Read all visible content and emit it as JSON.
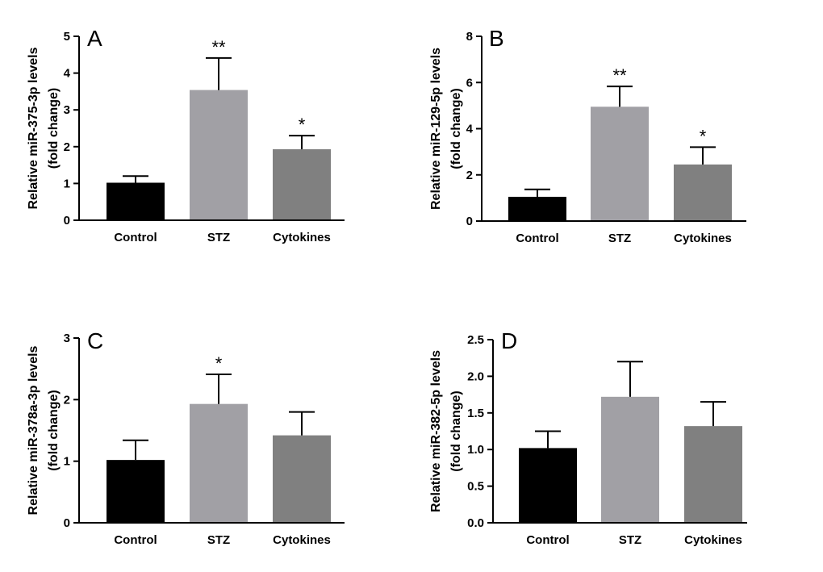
{
  "chart_data": [
    {
      "type": "bar",
      "panel": "A",
      "categories": [
        "Control",
        "STZ",
        "Cytokines"
      ],
      "values": [
        1.02,
        3.54,
        1.93
      ],
      "errors": [
        0.18,
        0.87,
        0.37
      ],
      "significance": [
        "",
        "**",
        "*"
      ],
      "colors": [
        "#000000",
        "#a1a0a5",
        "#808080"
      ],
      "ylabel_line1": "Relative miR-375-3p levels",
      "ylabel_line2": "(fold change)",
      "ylim": [
        0,
        5
      ],
      "yticks": [
        "0",
        "1",
        "2",
        "3",
        "4",
        "5"
      ],
      "ytick_values": [
        0,
        1,
        2,
        3,
        4,
        5
      ]
    },
    {
      "type": "bar",
      "panel": "B",
      "categories": [
        "Control",
        "STZ",
        "Cytokines"
      ],
      "values": [
        1.05,
        4.95,
        2.45
      ],
      "errors": [
        0.32,
        0.88,
        0.75
      ],
      "significance": [
        "",
        "**",
        "*"
      ],
      "colors": [
        "#000000",
        "#a1a0a5",
        "#808080"
      ],
      "ylabel_line1": "Relative miR-129-5p levels",
      "ylabel_line2": "(fold change)",
      "ylim": [
        0,
        8
      ],
      "yticks": [
        "0",
        "2",
        "4",
        "6",
        "8"
      ],
      "ytick_values": [
        0,
        2,
        4,
        6,
        8
      ]
    },
    {
      "type": "bar",
      "panel": "C",
      "categories": [
        "Control",
        "STZ",
        "Cytokines"
      ],
      "values": [
        1.02,
        1.93,
        1.42
      ],
      "errors": [
        0.32,
        0.48,
        0.38
      ],
      "significance": [
        "",
        "*",
        ""
      ],
      "colors": [
        "#000000",
        "#a1a0a5",
        "#808080"
      ],
      "ylabel_line1": "Relative miR-378a-3p levels",
      "ylabel_line2": "(fold change)",
      "ylim": [
        0,
        3
      ],
      "yticks": [
        "0",
        "1",
        "2",
        "3"
      ],
      "ytick_values": [
        0,
        1,
        2,
        3
      ]
    },
    {
      "type": "bar",
      "panel": "D",
      "categories": [
        "Control",
        "STZ",
        "Cytokines"
      ],
      "values": [
        1.02,
        1.72,
        1.32
      ],
      "errors": [
        0.23,
        0.48,
        0.33
      ],
      "significance": [
        "",
        "",
        ""
      ],
      "colors": [
        "#000000",
        "#a1a0a5",
        "#808080"
      ],
      "ylabel_line1": "Relative miR-382-5p levels",
      "ylabel_line2": "(fold change)",
      "ylim": [
        0,
        2.5
      ],
      "yticks": [
        "0.0",
        "0.5",
        "1.0",
        "1.5",
        "2.0",
        "2.5"
      ],
      "ytick_values": [
        0,
        0.5,
        1.0,
        1.5,
        2.0,
        2.5
      ]
    }
  ]
}
